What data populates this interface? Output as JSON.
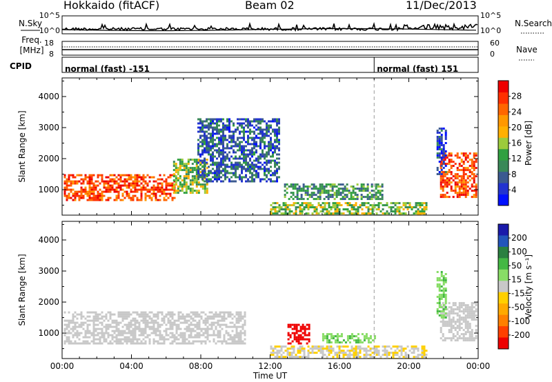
{
  "header": {
    "station": "Hokkaido (fitACF)",
    "beam": "Beam 02",
    "date": "11/Dec/2013"
  },
  "noise_panel": {
    "left_label": "N.Sky",
    "right_label": "N.Search",
    "left_ticks": [
      "10^5",
      "10^0"
    ],
    "right_ticks": [
      "10^5",
      "10^0"
    ]
  },
  "freq_panel": {
    "left_label_1": "Freq.",
    "left_label_2": "[MHz]",
    "right_label": "Nave",
    "left_ticks": [
      "18",
      "8"
    ],
    "right_ticks": [
      "60",
      "0"
    ]
  },
  "cpid_panel": {
    "label": "CPID",
    "modes": [
      {
        "text": "normal (fast) -151",
        "start_hour": 0
      },
      {
        "text": "normal (fast) 151",
        "start_hour": 18
      }
    ]
  },
  "chart_data": [
    {
      "type": "heatmap",
      "panel": "power",
      "ylabel": "Slant Range [km]",
      "ylim": [
        180,
        4600
      ],
      "yticks": [
        1000,
        2000,
        3000,
        4000
      ],
      "xlim_hours": [
        0,
        24
      ],
      "colorbar_label": "Power [dB]",
      "colorbar_ticks": [
        "4",
        "8",
        "12",
        "16",
        "20",
        "24",
        "28"
      ],
      "colors": [
        "#0010ff",
        "#2233d0",
        "#3b5a90",
        "#3a8858",
        "#30a040",
        "#9ccb3c",
        "#ffb000",
        "#ff9800",
        "#ff6600",
        "#ff3000",
        "#ee0000"
      ],
      "regions": [
        {
          "t0": 0.1,
          "t1": 6.5,
          "r0": 700,
          "r1": 1500,
          "value": 28
        },
        {
          "t0": 6.4,
          "t1": 8.4,
          "r0": 900,
          "r1": 2000,
          "value": 16
        },
        {
          "t0": 7.8,
          "t1": 12.5,
          "r0": 1300,
          "r1": 3300,
          "value": 8
        },
        {
          "t0": 12.8,
          "t1": 18.5,
          "r0": 700,
          "r1": 1200,
          "value": 12
        },
        {
          "t0": 12.0,
          "t1": 21.0,
          "r0": 200,
          "r1": 600,
          "value": 16
        },
        {
          "t0": 21.8,
          "t1": 23.9,
          "r0": 800,
          "r1": 2200,
          "value": 28
        },
        {
          "t0": 21.6,
          "t1": 22.1,
          "r0": 1500,
          "r1": 3000,
          "value": 6
        }
      ]
    },
    {
      "type": "heatmap",
      "panel": "velocity",
      "ylabel": "Slant Range [km]",
      "ylim": [
        180,
        4600
      ],
      "yticks": [
        1000,
        2000,
        3000,
        4000
      ],
      "xlim_hours": [
        0,
        24
      ],
      "xticks": [
        "00:00",
        "04:00",
        "08:00",
        "12:00",
        "16:00",
        "20:00",
        "00:00"
      ],
      "xlabel": "Time UT",
      "colorbar_label": "Velocity [m s⁻¹]",
      "colorbar_ticks": [
        "200",
        "100",
        "50",
        "15",
        "-15",
        "-50",
        "-100",
        "-200"
      ],
      "colors": [
        "#1a1aaa",
        "#2255bb",
        "#2a8040",
        "#44b844",
        "#88dd66",
        "#c8c8c8",
        "#ffd000",
        "#ffaa00",
        "#ff8000",
        "#ff4000",
        "#ee0000"
      ],
      "regions": [
        {
          "t0": 0.1,
          "t1": 10.5,
          "r0": 700,
          "r1": 1700,
          "value": 0
        },
        {
          "t0": 13.0,
          "t1": 14.2,
          "r0": 700,
          "r1": 1300,
          "value": -200
        },
        {
          "t0": 15.0,
          "t1": 18.0,
          "r0": 700,
          "r1": 1000,
          "value": 50
        },
        {
          "t0": 12.0,
          "t1": 21.0,
          "r0": 200,
          "r1": 600,
          "value": -15
        },
        {
          "t0": 21.8,
          "t1": 23.9,
          "r0": 800,
          "r1": 2000,
          "value": 0
        },
        {
          "t0": 21.6,
          "t1": 22.1,
          "r0": 1500,
          "r1": 3000,
          "value": 50
        }
      ]
    }
  ]
}
